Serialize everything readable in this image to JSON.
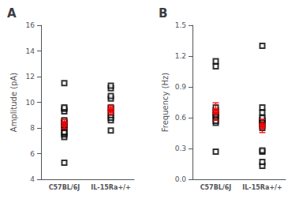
{
  "chart_data": [
    {
      "type": "scatter",
      "title": "A",
      "ylabel": "Amplitude (pA)",
      "categories": [
        "C57BL/6J",
        "IL-15Ra+/+"
      ],
      "ylim": [
        4,
        16
      ],
      "yticks": [
        4,
        6,
        8,
        10,
        12,
        14,
        16
      ],
      "grid": false,
      "series": [
        {
          "type": "scatter",
          "marker": "open_square",
          "color": "#000000",
          "values": [
            [
              5.3,
              7.3,
              7.5,
              7.6,
              7.7,
              8.0,
              8.1,
              8.2,
              8.3,
              8.4,
              8.5,
              8.6,
              9.3,
              9.5,
              9.6,
              11.5
            ],
            [
              7.8,
              8.6,
              8.8,
              9.0,
              9.2,
              9.5,
              9.6,
              10.3,
              10.5,
              11.1,
              11.3
            ]
          ]
        },
        {
          "type": "mean",
          "marker": "square",
          "color": "#ff0000",
          "values": [
            8.3,
            9.4
          ],
          "sem": [
            0.35,
            0.35
          ]
        }
      ]
    },
    {
      "type": "scatter",
      "title": "B",
      "ylabel": "Frequency (Hz)",
      "categories": [
        "C57BL/6J",
        "IL-15Ra+/+"
      ],
      "ylim": [
        0.0,
        1.5
      ],
      "yticks": [
        {
          "value": 0.0,
          "label": "0.0"
        },
        0.3,
        0.6,
        0.9,
        1.2,
        1.5
      ],
      "grid": false,
      "series": [
        {
          "type": "scatter",
          "marker": "open_square",
          "color": "#000000",
          "values": [
            [
              0.27,
              0.55,
              0.57,
              0.6,
              0.62,
              0.63,
              0.65,
              0.67,
              0.7,
              1.1,
              1.15
            ],
            [
              0.13,
              0.17,
              0.27,
              0.28,
              0.5,
              0.52,
              0.54,
              0.56,
              0.57,
              0.58,
              0.6,
              0.65,
              0.7,
              1.3
            ]
          ]
        },
        {
          "type": "mean",
          "marker": "square",
          "color": "#ff0000",
          "values": [
            0.66,
            0.52
          ],
          "sem": [
            0.085,
            0.065
          ]
        }
      ]
    }
  ]
}
